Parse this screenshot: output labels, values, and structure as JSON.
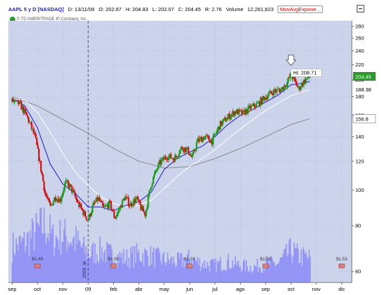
{
  "header": {
    "symbol": "AAPL 5 y D [NASDAQ]",
    "date": "D: 13/11/09",
    "open": "O: 202.87",
    "high": "H: 204.83",
    "low": "L: 202.07",
    "close": "C: 204.45",
    "range": "R: 2.76",
    "volume_label": "Volume",
    "volume_value": "12,261,823",
    "indicator": "MovAvgExpone..."
  },
  "copyright": "© TD AMERITRADE IP Company, Inc.",
  "colors": {
    "background": "#ccd4ec",
    "grid": "#a8b2d0",
    "volume": "#8f8ff6",
    "candle_up": "#1a9a1a",
    "candle_down": "#d01010",
    "ma_fast": "#2a2ad0",
    "ma_mid": "#ffffff",
    "ma_slow": "#8a8a8a",
    "price_marker": "#2a9a2a",
    "hi_marker": "#ffffff",
    "ma_marker": "#ffffff"
  },
  "chart_data": {
    "type": "candlestick",
    "yscale": "log",
    "ylim": [
      56,
      290
    ],
    "y_ticks": [
      60,
      80,
      100,
      120,
      140,
      160,
      180,
      200,
      220,
      240,
      260,
      280
    ],
    "x_ticks": [
      "sep",
      "oct",
      "nov",
      "09",
      "feb",
      "abr",
      "may",
      "jun",
      "jul",
      "ago",
      "sep",
      "oct",
      "nov",
      "dic"
    ],
    "price_markers": [
      {
        "label": "204.45",
        "value": 204.45,
        "color": "price_marker"
      },
      {
        "label": "188.38",
        "value": 188.38,
        "color": "none"
      },
      {
        "label": "156.8",
        "value": 156.8,
        "color": "ma_marker"
      }
    ],
    "annotations": [
      {
        "text": "Hi: 208.71",
        "type": "high_marker"
      },
      {
        "text": "2009 :ie",
        "type": "year_separator"
      }
    ],
    "dividends": [
      {
        "label": "$1.49",
        "month": 1
      },
      {
        "label": "$1.50",
        "month": 4
      },
      {
        "label": "$1.53",
        "month": 7
      },
      {
        "label": "$1.55",
        "month": 10
      },
      {
        "label": "$1.53",
        "month": 13
      }
    ],
    "price_path": [
      {
        "m": 0.0,
        "p": 175
      },
      {
        "m": 0.3,
        "p": 172
      },
      {
        "m": 0.6,
        "p": 158
      },
      {
        "m": 0.9,
        "p": 140
      },
      {
        "m": 1.1,
        "p": 118
      },
      {
        "m": 1.3,
        "p": 98
      },
      {
        "m": 1.5,
        "p": 90
      },
      {
        "m": 1.7,
        "p": 96
      },
      {
        "m": 1.9,
        "p": 94
      },
      {
        "m": 2.1,
        "p": 105
      },
      {
        "m": 2.3,
        "p": 102
      },
      {
        "m": 2.6,
        "p": 92
      },
      {
        "m": 2.85,
        "p": 86
      },
      {
        "m": 3.0,
        "p": 83
      },
      {
        "m": 3.2,
        "p": 91
      },
      {
        "m": 3.4,
        "p": 95
      },
      {
        "m": 3.6,
        "p": 89
      },
      {
        "m": 3.85,
        "p": 92
      },
      {
        "m": 4.05,
        "p": 84
      },
      {
        "m": 4.2,
        "p": 88
      },
      {
        "m": 4.45,
        "p": 96
      },
      {
        "m": 4.65,
        "p": 91
      },
      {
        "m": 4.9,
        "p": 95
      },
      {
        "m": 5.1,
        "p": 89
      },
      {
        "m": 5.25,
        "p": 86
      },
      {
        "m": 5.5,
        "p": 105
      },
      {
        "m": 5.8,
        "p": 118
      },
      {
        "m": 6.1,
        "p": 124
      },
      {
        "m": 6.4,
        "p": 122
      },
      {
        "m": 6.7,
        "p": 131
      },
      {
        "m": 6.95,
        "p": 128
      },
      {
        "m": 7.1,
        "p": 122
      },
      {
        "m": 7.3,
        "p": 136
      },
      {
        "m": 7.6,
        "p": 140
      },
      {
        "m": 7.9,
        "p": 136
      },
      {
        "m": 8.2,
        "p": 151
      },
      {
        "m": 8.5,
        "p": 158
      },
      {
        "m": 8.8,
        "p": 164
      },
      {
        "m": 9.1,
        "p": 162
      },
      {
        "m": 9.4,
        "p": 168
      },
      {
        "m": 9.7,
        "p": 172
      },
      {
        "m": 10.0,
        "p": 180
      },
      {
        "m": 10.3,
        "p": 186
      },
      {
        "m": 10.6,
        "p": 188
      },
      {
        "m": 10.85,
        "p": 197
      },
      {
        "m": 11.0,
        "p": 207
      },
      {
        "m": 11.15,
        "p": 198
      },
      {
        "m": 11.3,
        "p": 189
      },
      {
        "m": 11.45,
        "p": 196
      },
      {
        "m": 11.6,
        "p": 201
      },
      {
        "m": 11.75,
        "p": 204.45
      }
    ],
    "ma_fast": [
      {
        "m": 0.0,
        "p": 178
      },
      {
        "m": 0.5,
        "p": 170
      },
      {
        "m": 1.0,
        "p": 148
      },
      {
        "m": 1.5,
        "p": 118
      },
      {
        "m": 2.0,
        "p": 104
      },
      {
        "m": 2.5,
        "p": 98
      },
      {
        "m": 3.0,
        "p": 90
      },
      {
        "m": 3.5,
        "p": 90
      },
      {
        "m": 4.0,
        "p": 88
      },
      {
        "m": 4.5,
        "p": 91
      },
      {
        "m": 5.0,
        "p": 93
      },
      {
        "m": 5.5,
        "p": 99
      },
      {
        "m": 6.0,
        "p": 114
      },
      {
        "m": 6.5,
        "p": 122
      },
      {
        "m": 7.0,
        "p": 127
      },
      {
        "m": 7.5,
        "p": 132
      },
      {
        "m": 8.0,
        "p": 140
      },
      {
        "m": 8.5,
        "p": 151
      },
      {
        "m": 9.0,
        "p": 160
      },
      {
        "m": 9.5,
        "p": 166
      },
      {
        "m": 10.0,
        "p": 174
      },
      {
        "m": 10.5,
        "p": 182
      },
      {
        "m": 11.0,
        "p": 194
      },
      {
        "m": 11.5,
        "p": 196
      },
      {
        "m": 11.75,
        "p": 198
      }
    ],
    "ma_mid": [
      {
        "m": 0.0,
        "p": 178
      },
      {
        "m": 0.5,
        "p": 176
      },
      {
        "m": 1.0,
        "p": 163
      },
      {
        "m": 1.5,
        "p": 144
      },
      {
        "m": 2.0,
        "p": 126
      },
      {
        "m": 2.5,
        "p": 112
      },
      {
        "m": 3.0,
        "p": 103
      },
      {
        "m": 3.5,
        "p": 96
      },
      {
        "m": 4.0,
        "p": 92
      },
      {
        "m": 4.5,
        "p": 90
      },
      {
        "m": 5.0,
        "p": 91
      },
      {
        "m": 5.5,
        "p": 94
      },
      {
        "m": 6.0,
        "p": 101
      },
      {
        "m": 6.5,
        "p": 109
      },
      {
        "m": 7.0,
        "p": 116
      },
      {
        "m": 7.5,
        "p": 122
      },
      {
        "m": 8.0,
        "p": 129
      },
      {
        "m": 8.5,
        "p": 138
      },
      {
        "m": 9.0,
        "p": 147
      },
      {
        "m": 9.5,
        "p": 156
      },
      {
        "m": 10.0,
        "p": 165
      },
      {
        "m": 10.5,
        "p": 173
      },
      {
        "m": 11.0,
        "p": 181
      },
      {
        "m": 11.5,
        "p": 186
      },
      {
        "m": 11.75,
        "p": 188.38
      }
    ],
    "ma_slow": [
      {
        "m": 0.0,
        "p": 180
      },
      {
        "m": 1.0,
        "p": 170
      },
      {
        "m": 2.0,
        "p": 156
      },
      {
        "m": 3.0,
        "p": 143
      },
      {
        "m": 4.0,
        "p": 130
      },
      {
        "m": 5.0,
        "p": 120
      },
      {
        "m": 6.0,
        "p": 115
      },
      {
        "m": 7.0,
        "p": 116
      },
      {
        "m": 8.0,
        "p": 122
      },
      {
        "m": 9.0,
        "p": 130
      },
      {
        "m": 10.0,
        "p": 140
      },
      {
        "m": 11.0,
        "p": 151
      },
      {
        "m": 11.75,
        "p": 156.8
      }
    ],
    "volume_profile": [
      {
        "m": 0.0,
        "v": 0.38
      },
      {
        "m": 0.5,
        "v": 0.42
      },
      {
        "m": 1.0,
        "v": 0.55
      },
      {
        "m": 1.3,
        "v": 0.62
      },
      {
        "m": 1.6,
        "v": 0.46
      },
      {
        "m": 2.0,
        "v": 0.5
      },
      {
        "m": 2.5,
        "v": 0.44
      },
      {
        "m": 3.0,
        "v": 0.3
      },
      {
        "m": 3.5,
        "v": 0.34
      },
      {
        "m": 4.0,
        "v": 0.28
      },
      {
        "m": 4.5,
        "v": 0.26
      },
      {
        "m": 5.0,
        "v": 0.3
      },
      {
        "m": 5.5,
        "v": 0.28
      },
      {
        "m": 6.0,
        "v": 0.24
      },
      {
        "m": 6.5,
        "v": 0.22
      },
      {
        "m": 7.0,
        "v": 0.25
      },
      {
        "m": 7.5,
        "v": 0.2
      },
      {
        "m": 8.0,
        "v": 0.18
      },
      {
        "m": 8.5,
        "v": 0.22
      },
      {
        "m": 9.0,
        "v": 0.18
      },
      {
        "m": 9.5,
        "v": 0.16
      },
      {
        "m": 10.0,
        "v": 0.2
      },
      {
        "m": 10.5,
        "v": 0.2
      },
      {
        "m": 11.0,
        "v": 0.34
      },
      {
        "m": 11.3,
        "v": 0.28
      },
      {
        "m": 11.75,
        "v": 0.26
      }
    ]
  }
}
